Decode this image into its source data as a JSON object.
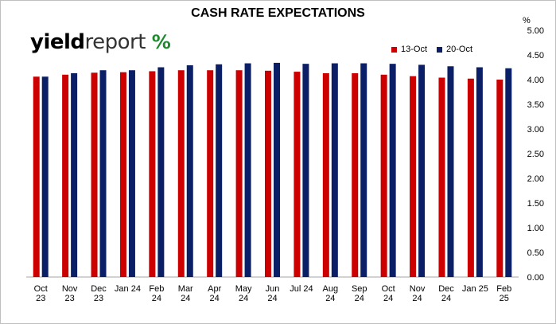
{
  "chart_data": {
    "type": "bar",
    "title": "CASH RATE EXPECTATIONS",
    "unit_label": "%",
    "xlabel": "",
    "ylabel": "",
    "ylim": [
      0,
      5
    ],
    "yticks": [
      "0.00",
      "0.50",
      "1.00",
      "1.50",
      "2.00",
      "2.50",
      "3.00",
      "3.50",
      "4.00",
      "4.50",
      "5.00"
    ],
    "y_axis_side": "right",
    "grid": false,
    "legend_position": "top-right",
    "categories": [
      [
        "Oct",
        "23"
      ],
      [
        "Nov",
        "23"
      ],
      [
        "Dec",
        "23"
      ],
      [
        "Jan 24"
      ],
      [
        "Feb",
        "24"
      ],
      [
        "Mar",
        "24"
      ],
      [
        "Apr",
        "24"
      ],
      [
        "May",
        "24"
      ],
      [
        "Jun",
        "24"
      ],
      [
        "Jul 24"
      ],
      [
        "Aug",
        "24"
      ],
      [
        "Sep",
        "24"
      ],
      [
        "Oct",
        "24"
      ],
      [
        "Nov",
        "24"
      ],
      [
        "Dec",
        "24"
      ],
      [
        "Jan 25"
      ],
      [
        "Feb",
        "25"
      ]
    ],
    "series": [
      {
        "name": "13-Oct",
        "color": "#cc0000",
        "values": [
          4.06,
          4.1,
          4.14,
          4.15,
          4.17,
          4.19,
          4.19,
          4.19,
          4.18,
          4.16,
          4.13,
          4.13,
          4.1,
          4.07,
          4.04,
          4.02,
          4.0
        ]
      },
      {
        "name": "20-Oct",
        "color": "#0b1f66",
        "values": [
          4.06,
          4.13,
          4.19,
          4.19,
          4.25,
          4.29,
          4.31,
          4.33,
          4.34,
          4.32,
          4.33,
          4.33,
          4.32,
          4.3,
          4.27,
          4.25,
          4.23
        ]
      }
    ]
  },
  "logo": {
    "yield": "yield",
    "report": "report",
    "pct": "%"
  }
}
